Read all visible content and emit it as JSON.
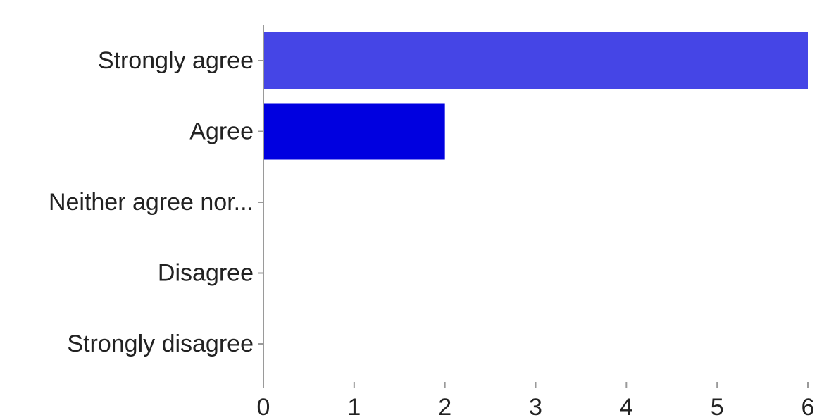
{
  "chart_data": {
    "type": "bar",
    "orientation": "horizontal",
    "title": "",
    "xlabel": "",
    "ylabel": "",
    "categories": [
      "Strongly agree",
      "Agree",
      "Neither agree nor...",
      "Disagree",
      "Strongly disagree"
    ],
    "values": [
      6,
      2,
      0,
      0,
      0
    ],
    "colors": [
      "#4545e6",
      "#0000e0",
      "#0000e0",
      "#0000e0",
      "#0000e0"
    ],
    "xlim": [
      0,
      6
    ],
    "xticks": [
      0,
      1,
      2,
      3,
      4,
      5,
      6
    ],
    "grid": false,
    "legend": "none"
  }
}
